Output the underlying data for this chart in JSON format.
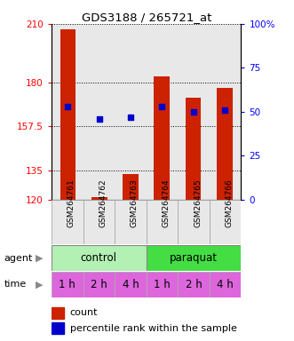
{
  "title": "GDS3188 / 265721_at",
  "categories": [
    "GSM264761",
    "GSM264762",
    "GSM264763",
    "GSM264764",
    "GSM264765",
    "GSM264766"
  ],
  "bar_values": [
    207,
    121,
    133,
    183,
    172,
    177
  ],
  "percentile_pct": [
    53,
    46,
    47,
    53,
    50,
    51
  ],
  "ylim_left": [
    120,
    210
  ],
  "ylim_right": [
    0,
    100
  ],
  "yticks_left": [
    120,
    135,
    157.5,
    180,
    210
  ],
  "ytick_labels_left": [
    "120",
    "135",
    "157.5",
    "180",
    "210"
  ],
  "yticks_right": [
    0,
    25,
    50,
    75,
    100
  ],
  "ytick_labels_right": [
    "0",
    "25",
    "50",
    "75",
    "100%"
  ],
  "bar_color": "#cc2200",
  "percentile_color": "#0000cc",
  "agent_labels": [
    "control",
    "paraquat"
  ],
  "time_labels": [
    "1 h",
    "2 h",
    "4 h",
    "1 h",
    "2 h",
    "4 h"
  ],
  "control_color": "#b3f0b3",
  "paraquat_color": "#44dd44",
  "time_color": "#dd66dd",
  "plot_bg": "#e8e8e8",
  "bar_width": 0.5
}
